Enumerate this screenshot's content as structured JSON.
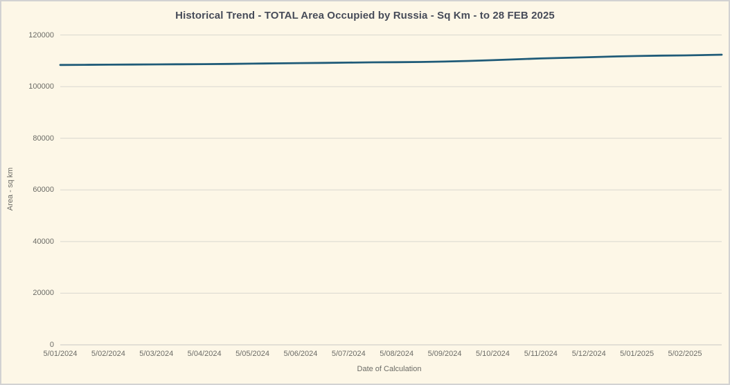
{
  "window": {
    "background_color": "#fdf7e7",
    "border_color": "#d2d2d2"
  },
  "chart_data": {
    "type": "line",
    "title": "Historical Trend - TOTAL Area Occupied by Russia - Sq Km - to 28 FEB 2025",
    "xlabel": "Date of Calculation",
    "ylabel": "Area - sq km",
    "ylim": [
      0,
      120000
    ],
    "y_ticks": [
      0,
      20000,
      40000,
      60000,
      80000,
      100000,
      120000
    ],
    "x_tick_labels": [
      "5/01/2024",
      "5/02/2024",
      "5/03/2024",
      "5/04/2024",
      "5/05/2024",
      "5/06/2024",
      "5/07/2024",
      "5/08/2024",
      "5/09/2024",
      "5/10/2024",
      "5/11/2024",
      "5/12/2024",
      "5/01/2025",
      "5/02/2025"
    ],
    "grid": "horizontal",
    "legend_position": "none",
    "line_color": "#1f5b78",
    "gridline_color": "#d9d7cf",
    "series": [
      {
        "name": "TOTAL Area Occupied by Russia - Sq Km",
        "points": [
          {
            "date": "5/01/2024",
            "value": 108400
          },
          {
            "date": "20/01/2024",
            "value": 108450
          },
          {
            "date": "5/02/2024",
            "value": 108500
          },
          {
            "date": "20/02/2024",
            "value": 108550
          },
          {
            "date": "5/03/2024",
            "value": 108600
          },
          {
            "date": "20/03/2024",
            "value": 108650
          },
          {
            "date": "5/04/2024",
            "value": 108700
          },
          {
            "date": "20/04/2024",
            "value": 108800
          },
          {
            "date": "5/05/2024",
            "value": 108900
          },
          {
            "date": "20/05/2024",
            "value": 109000
          },
          {
            "date": "5/06/2024",
            "value": 109100
          },
          {
            "date": "20/06/2024",
            "value": 109200
          },
          {
            "date": "5/07/2024",
            "value": 109300
          },
          {
            "date": "20/07/2024",
            "value": 109400
          },
          {
            "date": "5/08/2024",
            "value": 109450
          },
          {
            "date": "20/08/2024",
            "value": 109550
          },
          {
            "date": "5/09/2024",
            "value": 109700
          },
          {
            "date": "20/09/2024",
            "value": 109950
          },
          {
            "date": "5/10/2024",
            "value": 110250
          },
          {
            "date": "20/10/2024",
            "value": 110600
          },
          {
            "date": "5/11/2024",
            "value": 110900
          },
          {
            "date": "20/11/2024",
            "value": 111150
          },
          {
            "date": "5/12/2024",
            "value": 111400
          },
          {
            "date": "20/12/2024",
            "value": 111650
          },
          {
            "date": "5/01/2025",
            "value": 111850
          },
          {
            "date": "20/01/2025",
            "value": 112000
          },
          {
            "date": "5/02/2025",
            "value": 112100
          },
          {
            "date": "28/02/2025",
            "value": 112350
          }
        ]
      }
    ]
  }
}
